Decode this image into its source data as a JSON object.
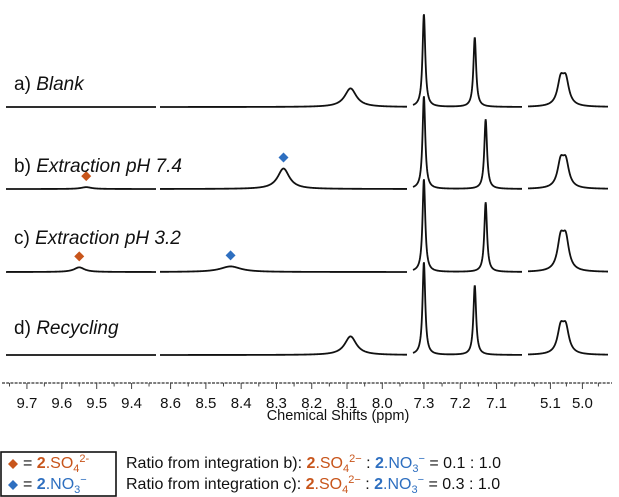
{
  "chart_data": {
    "type": "line",
    "xlabel": "Chemical Shifts (ppm)",
    "x_axis_reversed": true,
    "x_axis_segments": [
      {
        "range": [
          9.76,
          9.33
        ],
        "ticks": [
          "9.7",
          "9.6",
          "9.5",
          "9.4"
        ]
      },
      {
        "range": [
          8.63,
          7.93
        ],
        "ticks": [
          "8.6",
          "8.5",
          "8.4",
          "8.3",
          "8.2",
          "8.1",
          "8.0"
        ]
      },
      {
        "range": [
          7.33,
          7.03
        ],
        "ticks": [
          "7.3",
          "7.2",
          "7.1"
        ]
      },
      {
        "range": [
          5.17,
          4.92
        ],
        "ticks": [
          "5.1",
          "5.0"
        ]
      }
    ],
    "series": [
      {
        "label_prefix": "a)",
        "label_text": "Blank",
        "italic": true,
        "peaks": [
          {
            "x": 8.09,
            "height": 0.2
          },
          {
            "x": 7.3,
            "height": 1.0
          },
          {
            "x": 7.16,
            "height": 0.75
          },
          {
            "x": 5.06,
            "height": 0.45
          }
        ]
      },
      {
        "label_prefix": "b)",
        "label_text": "Extraction pH 7.4",
        "italic": true,
        "peaks": [
          {
            "x": 9.53,
            "height": 0.02
          },
          {
            "x": 8.28,
            "height": 0.22
          },
          {
            "x": 7.3,
            "height": 1.0
          },
          {
            "x": 7.13,
            "height": 0.75
          },
          {
            "x": 5.06,
            "height": 0.45
          }
        ],
        "markers": [
          {
            "x": 9.53,
            "species": "so4"
          },
          {
            "x": 8.28,
            "species": "no3"
          }
        ]
      },
      {
        "label_prefix": "c)",
        "label_text": "Extraction pH 3.2",
        "italic": true,
        "peaks": [
          {
            "x": 9.55,
            "height": 0.05
          },
          {
            "x": 8.43,
            "height": 0.06
          },
          {
            "x": 7.3,
            "height": 1.0
          },
          {
            "x": 7.13,
            "height": 0.75
          },
          {
            "x": 5.06,
            "height": 0.55
          }
        ],
        "markers": [
          {
            "x": 9.55,
            "species": "so4"
          },
          {
            "x": 8.43,
            "species": "no3"
          }
        ]
      },
      {
        "label_prefix": "d)",
        "label_text": "Recycling",
        "italic": true,
        "peaks": [
          {
            "x": 8.09,
            "height": 0.2
          },
          {
            "x": 7.3,
            "height": 1.0
          },
          {
            "x": 7.16,
            "height": 0.75
          },
          {
            "x": 5.06,
            "height": 0.45
          }
        ]
      }
    ],
    "legend": {
      "placement": "bottom-left",
      "items": [
        {
          "species": "so4",
          "bold": "2",
          "formula": ".SO",
          "sub": "4",
          "sup": "2-"
        },
        {
          "species": "no3",
          "bold": "2",
          "formula": ".NO",
          "sub": "3",
          "sup": "−"
        }
      ]
    },
    "ratios": [
      {
        "prefix": "Ratio from integration b): ",
        "value": " = 0.1 : 1.0"
      },
      {
        "prefix": "Ratio from integration c): ",
        "value": " = 0.3 : 1.0"
      }
    ],
    "ratio_terms": {
      "a_bold": "2",
      "a_formula": ".SO",
      "a_sub": "4",
      "a_sup": "2−",
      "sep": " : ",
      "b_bold": "2",
      "b_formula": ".NO",
      "b_sub": "3",
      "b_sup": "−"
    },
    "colors": {
      "so4": "#c8551b",
      "no3": "#2e6fc0",
      "trace": "#111111"
    }
  }
}
